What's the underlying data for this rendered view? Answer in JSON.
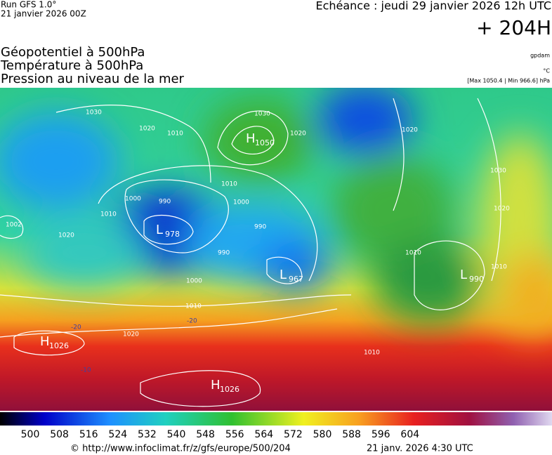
{
  "header": {
    "run": "Run GFS 1.0°",
    "date": "21 janvier 2026 00Z",
    "valid": "Echéance : jeudi 29 janvier 2026 12h UTC",
    "lead": "+ 204H"
  },
  "fields": [
    "Géopotentiel à 500hPa",
    "Température à 500hPa",
    "Pression au niveau de la mer"
  ],
  "units": {
    "geopotential": "gpdam",
    "temperature": "°C",
    "pressure": "[Max 1050.4 | Min 966.6] hPa"
  },
  "centers": [
    {
      "type": "H",
      "value": 1050
    },
    {
      "type": "L",
      "value": 978
    },
    {
      "type": "L",
      "value": 967
    },
    {
      "type": "L",
      "value": 990
    },
    {
      "type": "H",
      "value": 1026
    },
    {
      "type": "H",
      "value": 1026
    }
  ],
  "isobar_labels": [
    1030,
    1020,
    1010,
    1030,
    1020,
    1000,
    990,
    1000,
    990,
    1010,
    990,
    1000,
    1002,
    1010,
    1020,
    1020,
    1030,
    1020,
    1010,
    1010,
    1020,
    1010,
    1010
  ],
  "temperature_labels": [
    -20,
    -20,
    -10
  ],
  "colorbar_labels": [
    500,
    508,
    516,
    524,
    532,
    540,
    548,
    556,
    564,
    572,
    580,
    588,
    596,
    604
  ],
  "footer": {
    "source": "© http://www.infoclimat.fr/z/gfs/europe/500/204",
    "time": "21 janv. 2026  4:30 UTC"
  }
}
